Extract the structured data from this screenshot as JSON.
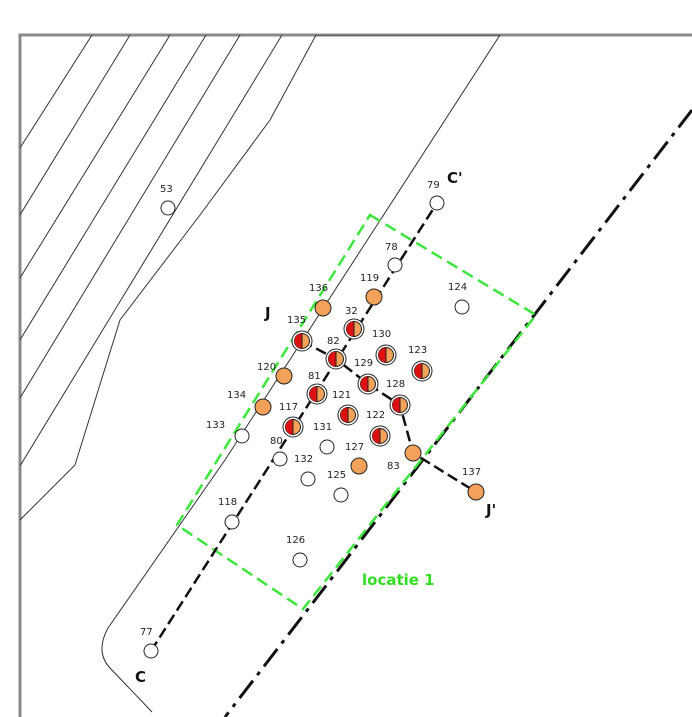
{
  "map": {
    "colors": {
      "frame": "#8a8a8a",
      "boundary": "#3ce63c",
      "profile": "#111111",
      "orange": "#f4a259",
      "red": "#dd1111",
      "white": "#ffffff"
    },
    "location_label": "locatie 1",
    "section_cc": {
      "start": "C",
      "end": "C'"
    },
    "section_jj": {
      "start": "J",
      "end": "J'"
    },
    "legend_types": {
      "empty": "white circle",
      "filled": "orange circle",
      "half": "red/orange half-filled circle"
    },
    "points": [
      {
        "id": "53",
        "type": "empty"
      },
      {
        "id": "79",
        "type": "empty"
      },
      {
        "id": "78",
        "type": "empty"
      },
      {
        "id": "119",
        "type": "filled"
      },
      {
        "id": "124",
        "type": "empty"
      },
      {
        "id": "136",
        "type": "filled"
      },
      {
        "id": "32",
        "type": "half"
      },
      {
        "id": "135",
        "type": "half"
      },
      {
        "id": "130",
        "type": "half"
      },
      {
        "id": "82",
        "type": "half"
      },
      {
        "id": "123",
        "type": "half"
      },
      {
        "id": "129",
        "type": "half"
      },
      {
        "id": "120",
        "type": "filled"
      },
      {
        "id": "81",
        "type": "half"
      },
      {
        "id": "128",
        "type": "half"
      },
      {
        "id": "134",
        "type": "filled"
      },
      {
        "id": "121",
        "type": "half"
      },
      {
        "id": "117",
        "type": "half"
      },
      {
        "id": "122",
        "type": "half"
      },
      {
        "id": "133",
        "type": "empty"
      },
      {
        "id": "131",
        "type": "empty"
      },
      {
        "id": "80",
        "type": "empty"
      },
      {
        "id": "127",
        "type": "filled"
      },
      {
        "id": "83",
        "type": "filled"
      },
      {
        "id": "132",
        "type": "empty"
      },
      {
        "id": "125",
        "type": "empty"
      },
      {
        "id": "137",
        "type": "filled"
      },
      {
        "id": "118",
        "type": "empty"
      },
      {
        "id": "126",
        "type": "empty"
      },
      {
        "id": "77",
        "type": "empty"
      }
    ]
  }
}
